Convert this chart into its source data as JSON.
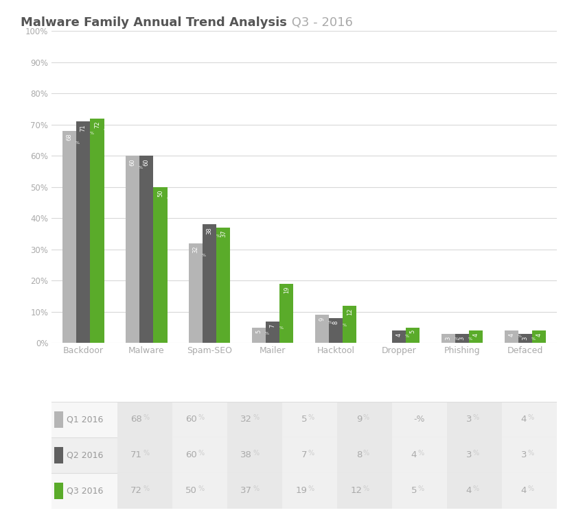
{
  "title_bold": "Malware Family Annual Trend Analysis",
  "title_light": " Q3 - 2016",
  "categories": [
    "Backdoor",
    "Malware",
    "Spam-SEO",
    "Mailer",
    "Hacktool",
    "Dropper",
    "Phishing",
    "Defaced"
  ],
  "series": {
    "Q1 2016": [
      68,
      60,
      32,
      5,
      9,
      0,
      3,
      4
    ],
    "Q2 2016": [
      71,
      60,
      38,
      7,
      8,
      4,
      3,
      3
    ],
    "Q3 2016": [
      72,
      50,
      37,
      19,
      12,
      5,
      4,
      4
    ]
  },
  "table_q1_labels": [
    "68",
    "60",
    "32",
    "5",
    "9",
    "-",
    "3",
    "4"
  ],
  "table_q2_labels": [
    "71",
    "60",
    "38",
    "7",
    "8",
    "4",
    "3",
    "3"
  ],
  "table_q3_labels": [
    "72",
    "50",
    "37",
    "19",
    "12",
    "5",
    "4",
    "4"
  ],
  "bar_labels": {
    "Q1 2016": [
      "68",
      "60",
      "32",
      "5",
      "9",
      "",
      "3",
      "4"
    ],
    "Q2 2016": [
      "71",
      "60",
      "38",
      "7",
      "8",
      "4",
      "3",
      "3"
    ],
    "Q3 2016": [
      "72",
      "50",
      "37",
      "19",
      "12",
      "5",
      "4",
      "4"
    ]
  },
  "colors": {
    "Q1 2016": "#b5b5b5",
    "Q2 2016": "#606060",
    "Q3 2016": "#5aab2a"
  },
  "ylim": [
    0,
    100
  ],
  "yticks": [
    0,
    10,
    20,
    30,
    40,
    50,
    60,
    70,
    80,
    90,
    100
  ],
  "background_color": "#ffffff",
  "grid_color": "#d8d8d8",
  "bar_width": 0.22,
  "bar_label_fontsize": 6.0,
  "axis_label_color": "#aaaaaa",
  "title_color_bold": "#555555",
  "title_color_light": "#aaaaaa",
  "table_row_colors": [
    "#f7f7f7",
    "#efefef",
    "#f7f7f7"
  ],
  "table_cell_colors_even": "#e8e8e8",
  "table_cell_colors_odd": "#f0f0f0"
}
